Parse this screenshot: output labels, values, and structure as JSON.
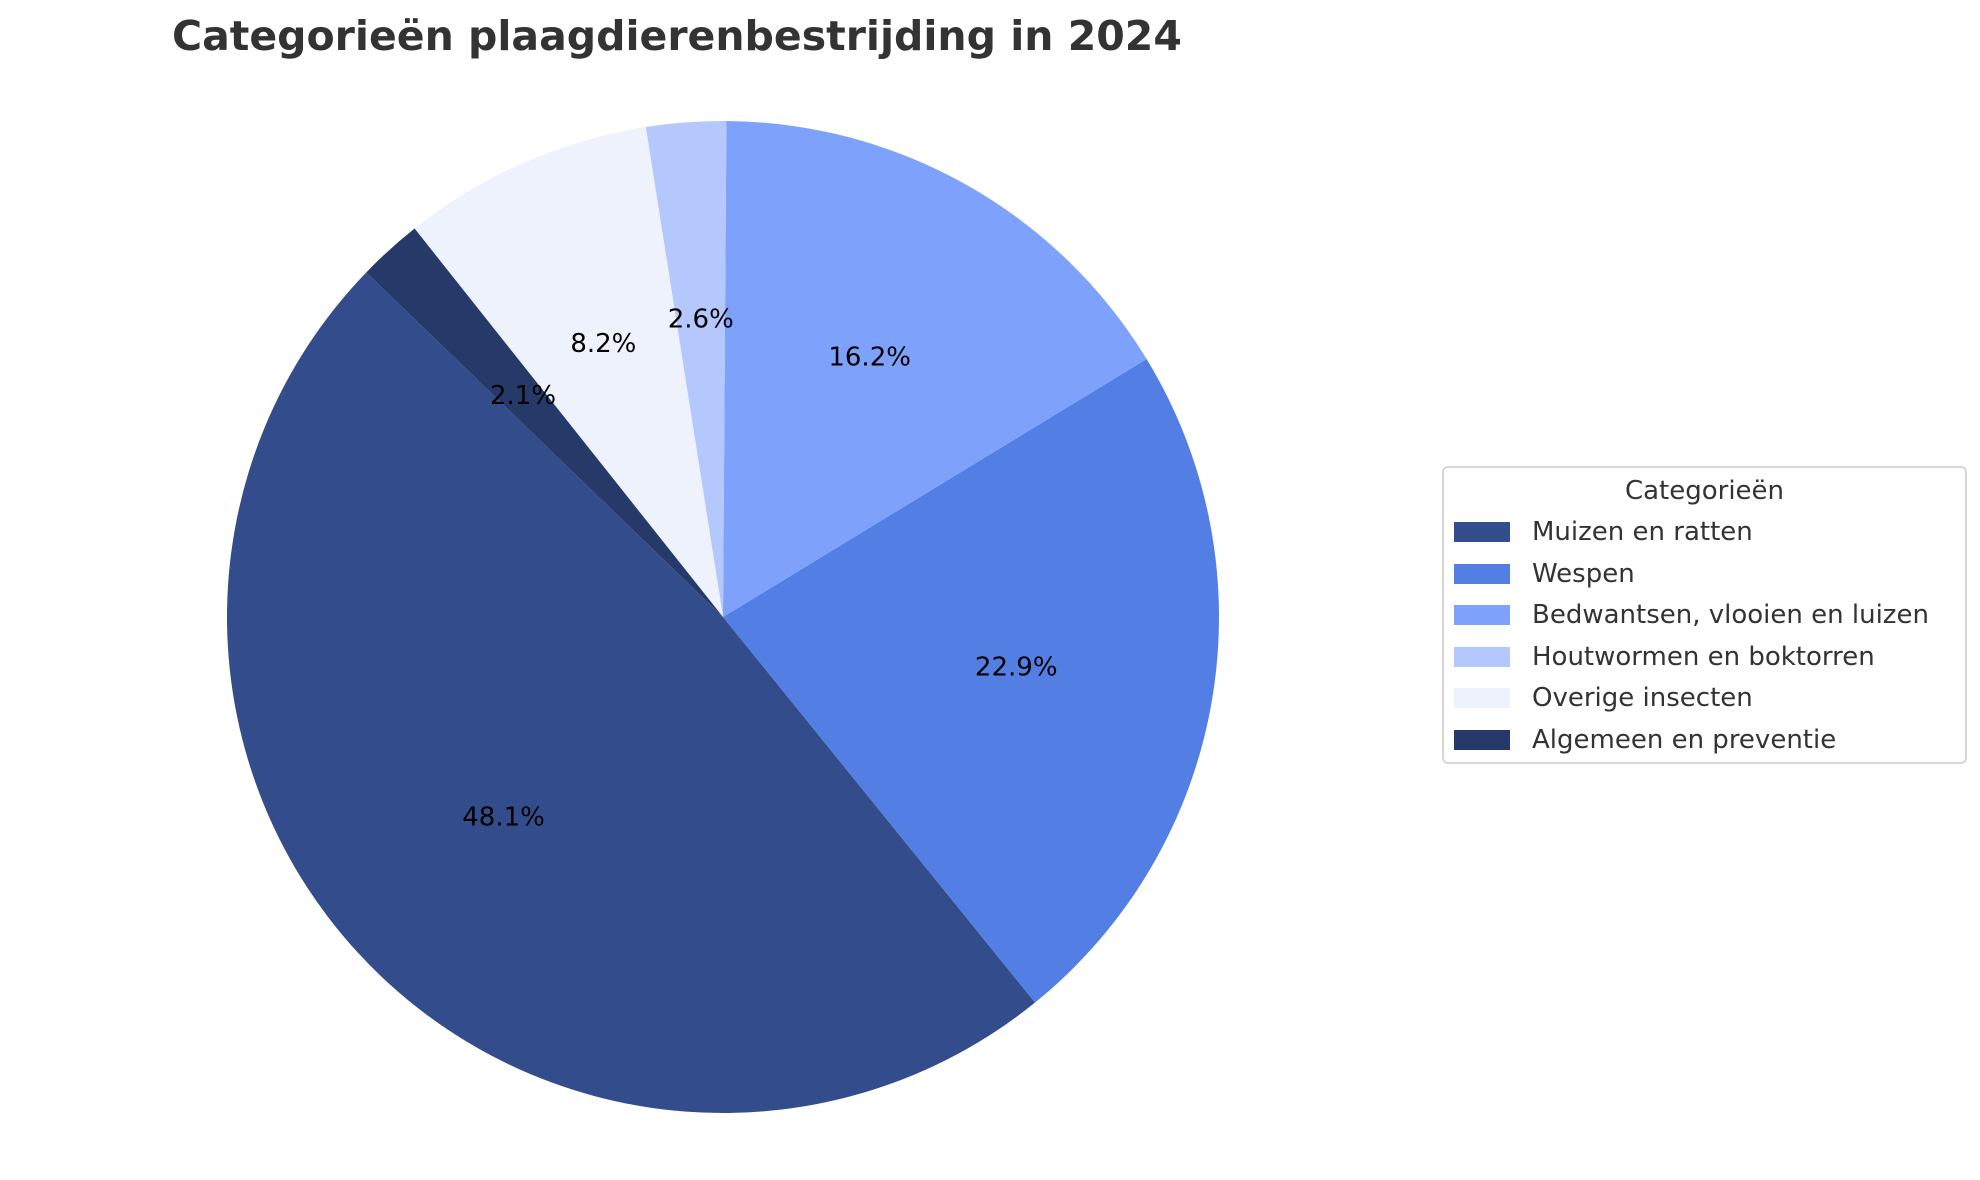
{
  "chart_data": {
    "type": "pie",
    "title": "Categorieën plaagdierenbestrijding in 2024",
    "legend_title": "Categorieën",
    "legend_placement": "right",
    "start_angle_deg": 136,
    "direction": "counterclockwise",
    "slices": [
      {
        "name": "Muizen en ratten",
        "value": 48.1,
        "label": "48.1%",
        "color": "#334d8c"
      },
      {
        "name": "Wespen",
        "value": 22.9,
        "label": "22.9%",
        "color": "#537fe4"
      },
      {
        "name": "Bedwantsen, vlooien en luizen",
        "value": 16.2,
        "label": "16.2%",
        "color": "#7ea2fc"
      },
      {
        "name": "Houtwormen en boktorren",
        "value": 2.6,
        "label": "2.6%",
        "color": "#b4c8fd"
      },
      {
        "name": "Overige insecten",
        "value": 8.2,
        "label": "8.2%",
        "color": "#eef2fd"
      },
      {
        "name": "Algemeen en preventie",
        "value": 2.1,
        "label": "2.1%",
        "color": "#263a6a"
      }
    ]
  }
}
